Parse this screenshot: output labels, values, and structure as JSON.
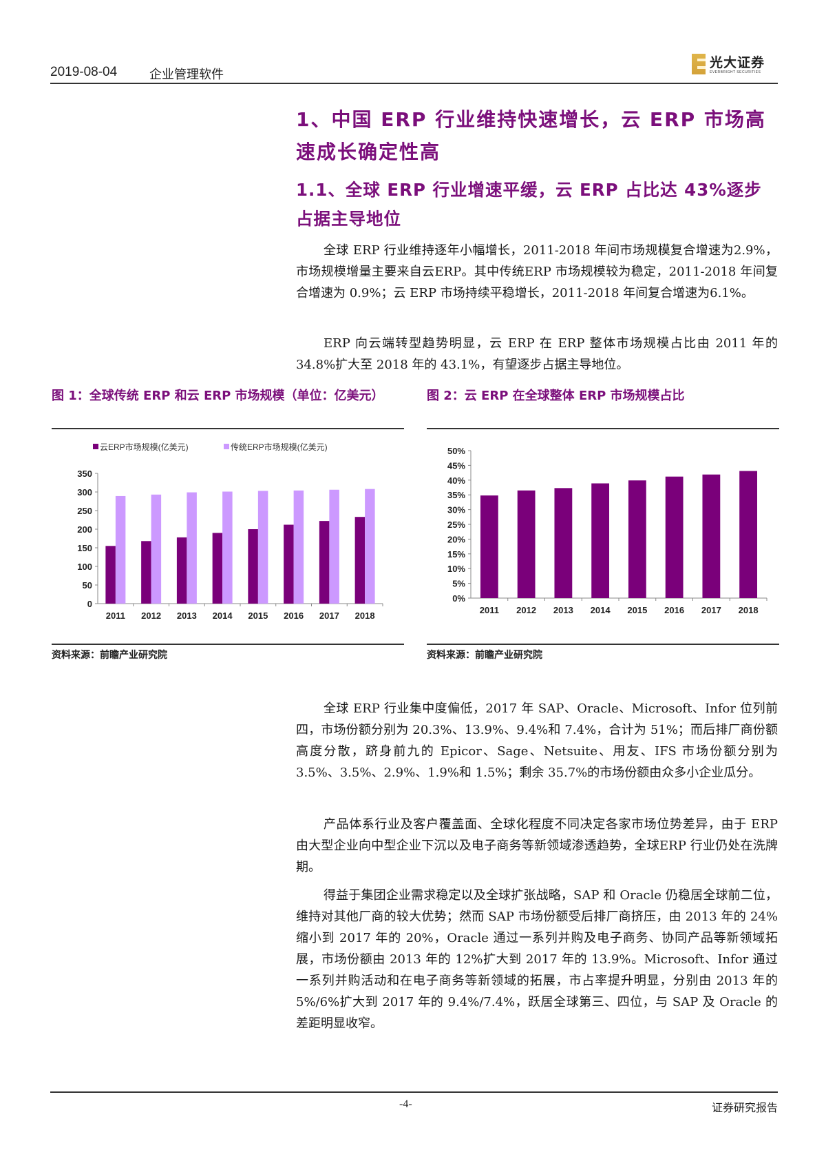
{
  "header": {
    "date": "2019-08-04",
    "industry": "企业管理软件",
    "logo": {
      "name_cn": "光大证券",
      "name_en": "EVERBRIGHT SECURITIES",
      "accent": "#d4a23a"
    }
  },
  "headings": {
    "h1": "1、中国 ERP 行业维持快速增长，云 ERP 市场高速成长确定性高",
    "h2": "1.1、全球 ERP 行业增速平缓，云 ERP 占比达 43%逐步占据主导地位"
  },
  "paragraphs": [
    "全球 ERP 行业维持逐年小幅增长，2011-2018 年间市场规模复合增速为2.9%，市场规模增量主要来自云ERP。其中传统ERP 市场规模较为稳定，2011-2018 年间复合增速为 0.9%；云 ERP 市场持续平稳增长，2011-2018 年间复合增速为6.1%。",
    "ERP 向云端转型趋势明显，云 ERP 在 ERP 整体市场规模占比由 2011 年的 34.8%扩大至 2018 年的 43.1%，有望逐步占据主导地位。",
    "全球 ERP 行业集中度偏低，2017 年 SAP、Oracle、Microsoft、Infor 位列前四，市场份额分别为 20.3%、13.9%、9.4%和 7.4%，合计为 51%；而后排厂商份额高度分散，跻身前九的 Epicor、Sage、Netsuite、用友、IFS 市场份额分别为 3.5%、3.5%、2.9%、1.9%和 1.5%；剩余 35.7%的市场份额由众多小企业瓜分。",
    "产品体系行业及客户覆盖面、全球化程度不同决定各家市场位势差异，由于 ERP 由大型企业向中型企业下沉以及电子商务等新领域渗透趋势，全球ERP 行业仍处在洗牌期。",
    "得益于集团企业需求稳定以及全球扩张战略，SAP 和 Oracle 仍稳居全球前二位，维持对其他厂商的较大优势；然而 SAP 市场份额受后排厂商挤压，由 2013 年的 24%缩小到 2017 年的 20%，Oracle 通过一系列并购及电子商务、协同产品等新领域拓展，市场份额由 2013 年的 12%扩大到 2017 年的 13.9%。Microsoft、Infor 通过一系列并购活动和在电子商务等新领域的拓展，市占率提升明显，分别由 2013 年的 5%/6%扩大到 2017 年的 9.4%/7.4%，跃居全球第三、四位，与 SAP 及 Oracle 的差距明显收窄。"
  ],
  "figures": [
    {
      "title": "图 1：全球传统 ERP 和云 ERP 市场规模（单位：亿美元）",
      "source": "资料来源：前瞻产业研究院"
    },
    {
      "title": "图 2：云 ERP 在全球整体 ERP 市场规模占比",
      "source": "资料来源：前瞻产业研究院"
    }
  ],
  "chart_data": [
    {
      "type": "bar",
      "title": "全球传统 ERP 和云 ERP 市场规模（单位：亿美元）",
      "categories": [
        "2011",
        "2012",
        "2013",
        "2014",
        "2015",
        "2016",
        "2017",
        "2018"
      ],
      "series": [
        {
          "name": "云ERP市场规模(亿美元)",
          "color": "#7a007a",
          "values": [
            155,
            168,
            178,
            190,
            200,
            212,
            222,
            233
          ]
        },
        {
          "name": "传统ERP市场规模(亿美元)",
          "color": "#cc99ff",
          "values": [
            289,
            293,
            299,
            301,
            303,
            304,
            306,
            308
          ]
        }
      ],
      "xlabel": "",
      "ylabel": "",
      "ylim": [
        0,
        350
      ],
      "yticks": [
        "0",
        "50",
        "100",
        "150",
        "200",
        "250",
        "300",
        "350"
      ],
      "grid": false,
      "legend_position": "top"
    },
    {
      "type": "bar",
      "title": "云 ERP 在全球整体 ERP 市场规模占比",
      "categories": [
        "2011",
        "2012",
        "2013",
        "2014",
        "2015",
        "2016",
        "2017",
        "2018"
      ],
      "series": [
        {
          "name": "云ERP占比",
          "color": "#7a007a",
          "values": [
            34.8,
            36.5,
            37.3,
            38.9,
            39.9,
            41.2,
            41.9,
            43.1
          ]
        }
      ],
      "xlabel": "",
      "ylabel": "",
      "ylim": [
        0,
        50
      ],
      "yticks": [
        "0%",
        "5%",
        "10%",
        "15%",
        "20%",
        "25%",
        "30%",
        "35%",
        "40%",
        "45%",
        "50%"
      ],
      "grid": false,
      "legend_position": "none"
    }
  ],
  "footer": {
    "page": "-4-",
    "label": "证券研究报告"
  }
}
